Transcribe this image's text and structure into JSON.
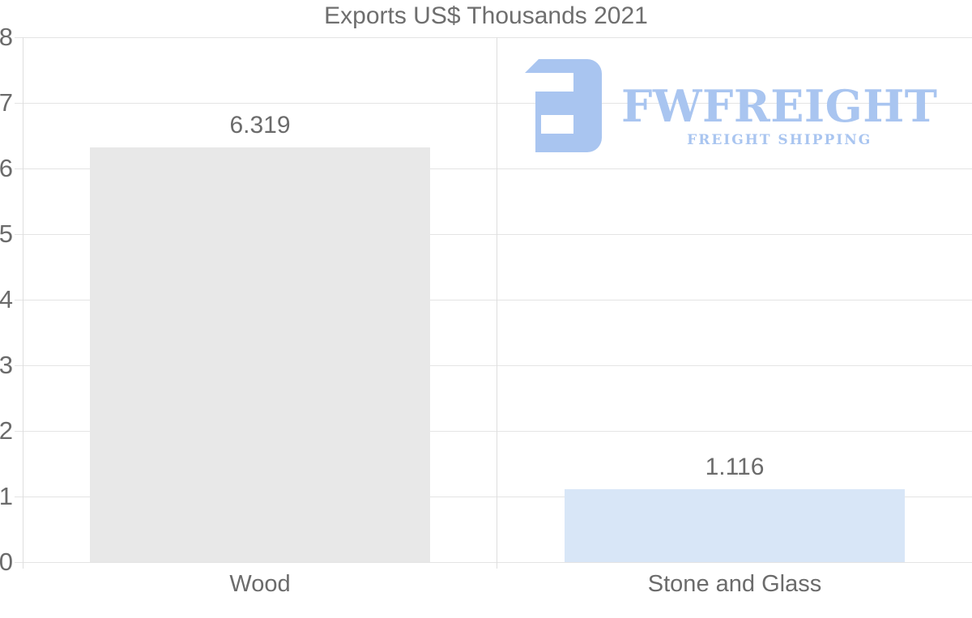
{
  "page": {
    "background": "#ffffff"
  },
  "chart_data": {
    "type": "bar",
    "title": "Exports US$ Thousands 2021",
    "categories": [
      "Wood",
      "Stone and Glass"
    ],
    "values": [
      6.319,
      1.116
    ],
    "value_labels": [
      "6.319",
      "1.116"
    ],
    "bar_colors": [
      "#e8e8e8",
      "#d8e6f7"
    ],
    "xlabel": "",
    "ylabel": "",
    "ylim": [
      0,
      8
    ],
    "yticks": [
      0,
      1,
      2,
      3,
      4,
      5,
      6,
      7,
      8
    ],
    "grid": true,
    "legend": false,
    "gridline_color": "#e4e4e4",
    "axis_line_color": "#dedede",
    "text_color": "#6b6b6b"
  },
  "logo": {
    "wordmark": "FWFREIGHT",
    "subtitle": "FREIGHT SHIPPING",
    "color": "#a9c5f0"
  }
}
